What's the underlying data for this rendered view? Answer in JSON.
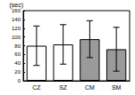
{
  "chart_data": {
    "type": "bar",
    "y_label": "(sec)",
    "categories": [
      "CZ",
      "SZ",
      "CM",
      "SM"
    ],
    "values": [
      80,
      83,
      95,
      72
    ],
    "errors": [
      45,
      45,
      42,
      50
    ],
    "colors": [
      "#ffffff",
      "#ffffff",
      "#9a9a9a",
      "#9a9a9a"
    ],
    "ylim": [
      0,
      160
    ],
    "yticks": [
      0,
      20,
      40,
      60,
      80,
      100,
      120,
      140,
      160
    ],
    "grid": false
  }
}
